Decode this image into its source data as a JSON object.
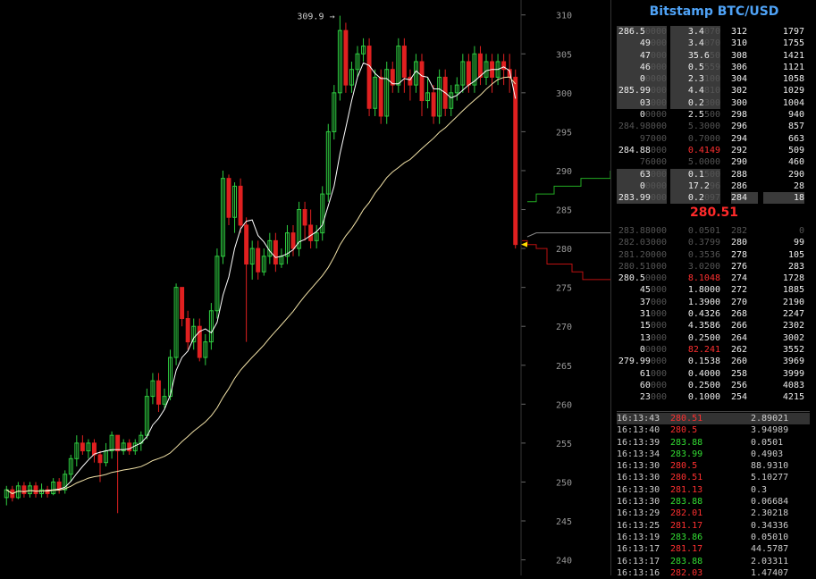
{
  "title": "Bitstamp BTC/USD",
  "last_price": "280.51",
  "colors": {
    "up": "#2ecc40",
    "down": "#e02020",
    "ma_fast": "#ffffff",
    "ma_slow": "#f3e3a8",
    "title": "#4fa3f7"
  },
  "chart_data": {
    "type": "candlestick",
    "ylim": [
      240,
      311
    ],
    "y_ticks": [
      240,
      245,
      250,
      255,
      260,
      265,
      270,
      275,
      280,
      285,
      290,
      295,
      300,
      305,
      310
    ],
    "high_marker": "309.9 →",
    "current_price": 280.51,
    "candles": [
      [
        248,
        249,
        247,
        249.5
      ],
      [
        249,
        248,
        247.5,
        249.5
      ],
      [
        248,
        249.5,
        247.8,
        250
      ],
      [
        249.5,
        248.5,
        248,
        250
      ],
      [
        248.5,
        249.5,
        248,
        250
      ],
      [
        249.5,
        248.5,
        248,
        250
      ],
      [
        248.5,
        249,
        248,
        249.8
      ],
      [
        249,
        248.5,
        248,
        249.5
      ],
      [
        248.5,
        250,
        248.3,
        250.5
      ],
      [
        250,
        249,
        248.5,
        250.5
      ],
      [
        249,
        251,
        248.5,
        251.5
      ],
      [
        251,
        253,
        250,
        253.5
      ],
      [
        253,
        255,
        252,
        256
      ],
      [
        255,
        254,
        253.5,
        256
      ],
      [
        254,
        255,
        253,
        255.5
      ],
      [
        255,
        253.5,
        252.5,
        255.5
      ],
      [
        253.5,
        252.5,
        250,
        254
      ],
      [
        252.5,
        254,
        252,
        255
      ],
      [
        254,
        256,
        253,
        256.5
      ],
      [
        256,
        254,
        246,
        256
      ],
      [
        254,
        255,
        253.5,
        255.5
      ],
      [
        255,
        254,
        253.5,
        255.5
      ],
      [
        254,
        255,
        253.5,
        255.5
      ],
      [
        255,
        256,
        254,
        256.5
      ],
      [
        256,
        261,
        255.5,
        262
      ],
      [
        261,
        263,
        260,
        264
      ],
      [
        263,
        260,
        259,
        264
      ],
      [
        260,
        261,
        259.5,
        262
      ],
      [
        261,
        266,
        260.5,
        267
      ],
      [
        266,
        275,
        265,
        275.5
      ],
      [
        275,
        271,
        270,
        275
      ],
      [
        271,
        268,
        267,
        272
      ],
      [
        268,
        270,
        267,
        271
      ],
      [
        270,
        266,
        265.5,
        271
      ],
      [
        266,
        268,
        265,
        269
      ],
      [
        268,
        272,
        267,
        273
      ],
      [
        272,
        279,
        271,
        280
      ],
      [
        279,
        289,
        278,
        290
      ],
      [
        289,
        284,
        283,
        289.5
      ],
      [
        284,
        288,
        282,
        288.5
      ],
      [
        288,
        283,
        282,
        289
      ],
      [
        283,
        278,
        268,
        284
      ],
      [
        278,
        280,
        276,
        281
      ],
      [
        280,
        277,
        276,
        281
      ],
      [
        277,
        279,
        276.5,
        280
      ],
      [
        279,
        281,
        278,
        282
      ],
      [
        281,
        278,
        277,
        282
      ],
      [
        278,
        279,
        277.5,
        280
      ],
      [
        279,
        282,
        278,
        283
      ],
      [
        282,
        280,
        279,
        283
      ],
      [
        280,
        285,
        279,
        286
      ],
      [
        285,
        283,
        281,
        286
      ],
      [
        283,
        281,
        280,
        285
      ],
      [
        281,
        282,
        280,
        283
      ],
      [
        282,
        287,
        281,
        288
      ],
      [
        287,
        295,
        286,
        296
      ],
      [
        295,
        300,
        294,
        301
      ],
      [
        300,
        308,
        299,
        309.9
      ],
      [
        308,
        301,
        300,
        309
      ],
      [
        301,
        303,
        300,
        304
      ],
      [
        303,
        305,
        302,
        306
      ],
      [
        305,
        306,
        304,
        307
      ],
      [
        306,
        298,
        297,
        307
      ],
      [
        298,
        302,
        297,
        303
      ],
      [
        302,
        297,
        296,
        303
      ],
      [
        297,
        303,
        296,
        304
      ],
      [
        303,
        301,
        300,
        304
      ],
      [
        301,
        306,
        300,
        307
      ],
      [
        306,
        302,
        300,
        307
      ],
      [
        302,
        301,
        299,
        303
      ],
      [
        301,
        304,
        300,
        305
      ],
      [
        304,
        299,
        297,
        305
      ],
      [
        299,
        300,
        298,
        302
      ],
      [
        300,
        297,
        296,
        301
      ],
      [
        297,
        302,
        296,
        303
      ],
      [
        302,
        298,
        297,
        303
      ],
      [
        298,
        300,
        297,
        301
      ],
      [
        300,
        301,
        299,
        302
      ],
      [
        301,
        304,
        300,
        305
      ],
      [
        304,
        301,
        300,
        305
      ],
      [
        301,
        305,
        300,
        306
      ],
      [
        305,
        302,
        301,
        306
      ],
      [
        302,
        304,
        301,
        305
      ],
      [
        304,
        302,
        300,
        305
      ],
      [
        302,
        304,
        301,
        305
      ],
      [
        304,
        303,
        301,
        305
      ],
      [
        303,
        302,
        300,
        305
      ],
      [
        302,
        280.51,
        280,
        303
      ]
    ],
    "bid_depth": [
      [
        584,
        293
      ],
      [
        590,
        289
      ],
      [
        596,
        286
      ],
      [
        604,
        285
      ],
      [
        612,
        284
      ],
      [
        620,
        283
      ],
      [
        640,
        283
      ],
      [
        660,
        282
      ],
      [
        683,
        282
      ]
    ],
    "ask_depth": [
      [
        584,
        281
      ],
      [
        590,
        280.5
      ],
      [
        600,
        280
      ],
      [
        612,
        278
      ],
      [
        640,
        277
      ],
      [
        652,
        276
      ],
      [
        683,
        276
      ]
    ],
    "mid_depth": [
      [
        590,
        281.5
      ],
      [
        600,
        282
      ],
      [
        620,
        282
      ],
      [
        683,
        282
      ]
    ],
    "green_depth": [
      [
        590,
        286
      ],
      [
        600,
        287
      ],
      [
        620,
        288
      ],
      [
        650,
        289
      ],
      [
        683,
        290
      ]
    ]
  },
  "asks": [
    {
      "price": "286.5",
      "dim": "0000",
      "amount": "3.4",
      "amt_dim": "070",
      "level": "312",
      "cum": "1797",
      "hl": true
    },
    {
      "price": "49",
      "dim": "000",
      "amount": "3.4",
      "amt_dim": "070",
      "level": "310",
      "cum": "1755",
      "hl": true
    },
    {
      "price": "47",
      "dim": "000",
      "amount": "35.6",
      "amt_dim": "50",
      "level": "308",
      "cum": "1421",
      "hl": true
    },
    {
      "price": "46",
      "dim": "000",
      "amount": "0.5",
      "amt_dim": "559",
      "level": "306",
      "cum": "1121",
      "hl": true
    },
    {
      "price": "0",
      "dim": "0000",
      "amount": "2.3",
      "amt_dim": "100",
      "level": "304",
      "cum": "1058",
      "hl": true
    },
    {
      "price": "285.99",
      "dim": "000",
      "amount": "4.4",
      "amt_dim": "810",
      "level": "302",
      "cum": "1029",
      "hl": true
    },
    {
      "price": "03",
      "dim": "000",
      "amount": "0.2",
      "amt_dim": "300",
      "level": "300",
      "cum": "1004",
      "hl": true
    },
    {
      "price": "0",
      "dim": "0000",
      "amount": "2.5",
      "amt_dim": "500",
      "level": "298",
      "cum": "940",
      "hl": false
    },
    {
      "price": "",
      "dim": "284.98000",
      "amount": "",
      "amt_dim": "5.3000",
      "level": "296",
      "cum": "857",
      "hl": false
    },
    {
      "price": "",
      "dim": "97000",
      "amount": "",
      "amt_dim": "0.7000",
      "level": "294",
      "cum": "663",
      "hl": false
    },
    {
      "price": "284.88",
      "dim": "000",
      "amount": "0.4149",
      "amt_dim": "",
      "level": "292",
      "cum": "509",
      "hl": false,
      "red": true
    },
    {
      "price": "",
      "dim": "76000",
      "amount": "",
      "amt_dim": "5.0000",
      "level": "290",
      "cum": "460",
      "hl": false
    },
    {
      "price": "63",
      "dim": "000",
      "amount": "0.1",
      "amt_dim": "500",
      "level": "288",
      "cum": "290",
      "hl": true
    },
    {
      "price": "0",
      "dim": "0000",
      "amount": "17.2",
      "amt_dim": "96",
      "level": "286",
      "cum": "28",
      "hl": true
    },
    {
      "price": "283.99",
      "dim": "000",
      "amount": "0.2",
      "amt_dim": "097",
      "level": "284",
      "cum": "18",
      "hl": true
    }
  ],
  "bids": [
    {
      "price": "",
      "dim": "283.88000",
      "amount": "",
      "amt_dim": "0.0501",
      "level": "282",
      "cum": "0",
      "dimrow": true
    },
    {
      "price": "",
      "dim": "282.03000",
      "amount": "",
      "amt_dim": "0.3799",
      "level": "280",
      "cum": "99"
    },
    {
      "price": "",
      "dim": "281.20000",
      "amount": "",
      "amt_dim": "0.3536",
      "level": "278",
      "cum": "105"
    },
    {
      "price": "",
      "dim": "280.51000",
      "amount": "",
      "amt_dim": "3.0200",
      "level": "276",
      "cum": "283"
    },
    {
      "price": "280.5",
      "dim": "0000",
      "amount": "8.1048",
      "amt_dim": "",
      "level": "274",
      "cum": "1728",
      "red": true
    },
    {
      "price": "45",
      "dim": "000",
      "amount": "1.8000",
      "amt_dim": "",
      "level": "272",
      "cum": "1885"
    },
    {
      "price": "37",
      "dim": "000",
      "amount": "1.3900",
      "amt_dim": "",
      "level": "270",
      "cum": "2190"
    },
    {
      "price": "31",
      "dim": "000",
      "amount": "0.4326",
      "amt_dim": "",
      "level": "268",
      "cum": "2247"
    },
    {
      "price": "15",
      "dim": "000",
      "amount": "4.3586",
      "amt_dim": "",
      "level": "266",
      "cum": "2302"
    },
    {
      "price": "13",
      "dim": "000",
      "amount": "0.2500",
      "amt_dim": "",
      "level": "264",
      "cum": "3002"
    },
    {
      "price": "0",
      "dim": "0000",
      "amount": "82.241",
      "amt_dim": "",
      "level": "262",
      "cum": "3552",
      "red": true
    },
    {
      "price": "279.99",
      "dim": "000",
      "amount": "0.1538",
      "amt_dim": "",
      "level": "260",
      "cum": "3969"
    },
    {
      "price": "61",
      "dim": "000",
      "amount": "0.4000",
      "amt_dim": "",
      "level": "258",
      "cum": "3999"
    },
    {
      "price": "60",
      "dim": "000",
      "amount": "0.2500",
      "amt_dim": "",
      "level": "256",
      "cum": "4083"
    },
    {
      "price": "23",
      "dim": "000",
      "amount": "0.1000",
      "amt_dim": "",
      "level": "254",
      "cum": "4215"
    }
  ],
  "trades": [
    {
      "time": "16:13:43",
      "price": "280.51",
      "amount": "2.89021",
      "color": "red",
      "hl": true
    },
    {
      "time": "16:13:40",
      "price": "280.5",
      "amount": "3.94989",
      "color": "red"
    },
    {
      "time": "16:13:39",
      "price": "283.88",
      "amount": "0.0501",
      "color": "green"
    },
    {
      "time": "16:13:34",
      "price": "283.99",
      "amount": "0.4903",
      "color": "green"
    },
    {
      "time": "16:13:30",
      "price": "280.5",
      "amount": "88.9310",
      "color": "red"
    },
    {
      "time": "16:13:30",
      "price": "280.51",
      "amount": "5.10277",
      "color": "red"
    },
    {
      "time": "16:13:30",
      "price": "281.13",
      "amount": "0.3",
      "color": "red"
    },
    {
      "time": "16:13:30",
      "price": "283.88",
      "amount": "0.06684",
      "color": "green"
    },
    {
      "time": "16:13:29",
      "price": "282.01",
      "amount": "2.30218",
      "color": "red"
    },
    {
      "time": "16:13:25",
      "price": "281.17",
      "amount": "0.34336",
      "color": "red"
    },
    {
      "time": "16:13:19",
      "price": "283.86",
      "amount": "0.05010",
      "color": "green"
    },
    {
      "time": "16:13:17",
      "price": "281.17",
      "amount": "44.5787",
      "color": "red"
    },
    {
      "time": "16:13:17",
      "price": "283.88",
      "amount": "2.03311",
      "color": "green"
    },
    {
      "time": "16:13:16",
      "price": "282.03",
      "amount": "1.47407",
      "color": "red"
    }
  ]
}
